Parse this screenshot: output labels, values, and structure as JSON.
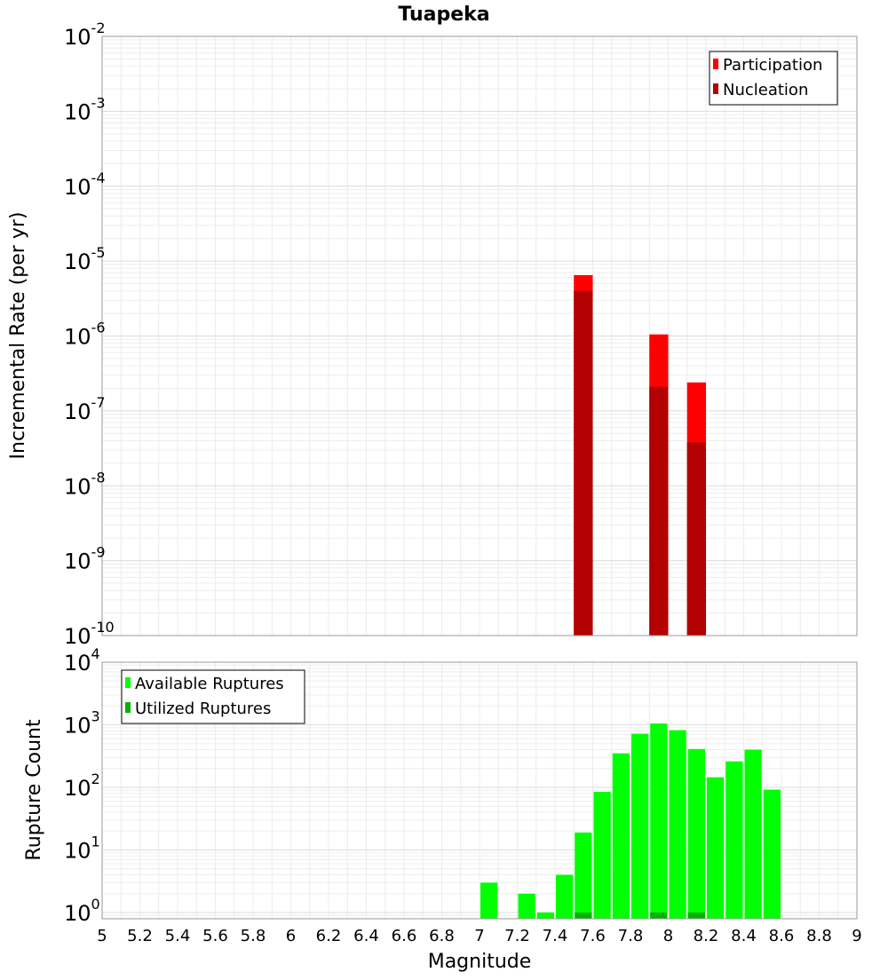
{
  "title": "Tuapeka",
  "chart_data": [
    {
      "type": "bar",
      "ylabel": "Incremental Rate (per yr)",
      "yscale": "log",
      "ylim_exponents": [
        -10,
        -2
      ],
      "y_tick_exponents": [
        -10,
        -9,
        -8,
        -7,
        -6,
        -5,
        -4,
        -3,
        -2
      ],
      "xlim": [
        5,
        9
      ],
      "bin_width": 0.1,
      "grid": true,
      "legend_position": "top-right",
      "series": [
        {
          "name": "Participation",
          "color": "#ff0000",
          "points": [
            {
              "x": 7.55,
              "y": 6.5e-06
            },
            {
              "x": 7.95,
              "y": 1.05e-06
            },
            {
              "x": 8.15,
              "y": 2.4e-07
            }
          ]
        },
        {
          "name": "Nucleation",
          "color": "#b30000",
          "points": [
            {
              "x": 7.55,
              "y": 4e-06
            },
            {
              "x": 7.95,
              "y": 2.1e-07
            },
            {
              "x": 8.15,
              "y": 3.8e-08
            }
          ]
        }
      ]
    },
    {
      "type": "bar",
      "ylabel": "Rupture Count",
      "xlabel": "Magnitude",
      "yscale": "log",
      "ylim_exponents": [
        -0.1,
        4
      ],
      "y_tick_exponents": [
        0,
        1,
        2,
        3,
        4
      ],
      "xlim": [
        5,
        9
      ],
      "x_ticks": [
        "5",
        "5.2",
        "5.4",
        "5.6",
        "5.8",
        "6",
        "6.2",
        "6.4",
        "6.6",
        "6.8",
        "7",
        "7.2",
        "7.4",
        "7.6",
        "7.8",
        "8",
        "8.2",
        "8.4",
        "8.6",
        "8.8",
        "9"
      ],
      "bin_width": 0.1,
      "grid": true,
      "legend_position": "top-left",
      "series": [
        {
          "name": "Available Ruptures",
          "color": "#00ff00",
          "points": [
            {
              "x": 7.05,
              "y": 3
            },
            {
              "x": 7.25,
              "y": 2
            },
            {
              "x": 7.35,
              "y": 1
            },
            {
              "x": 7.45,
              "y": 4
            },
            {
              "x": 7.55,
              "y": 19
            },
            {
              "x": 7.65,
              "y": 85
            },
            {
              "x": 7.75,
              "y": 350
            },
            {
              "x": 7.85,
              "y": 720
            },
            {
              "x": 7.95,
              "y": 1050
            },
            {
              "x": 8.05,
              "y": 820
            },
            {
              "x": 8.15,
              "y": 410
            },
            {
              "x": 8.25,
              "y": 145
            },
            {
              "x": 8.35,
              "y": 260
            },
            {
              "x": 8.45,
              "y": 400
            },
            {
              "x": 8.55,
              "y": 92
            }
          ]
        },
        {
          "name": "Utilized Ruptures",
          "color": "#00b300",
          "points": [
            {
              "x": 7.55,
              "y": 1
            },
            {
              "x": 7.95,
              "y": 1
            },
            {
              "x": 8.15,
              "y": 1
            }
          ]
        }
      ]
    }
  ]
}
